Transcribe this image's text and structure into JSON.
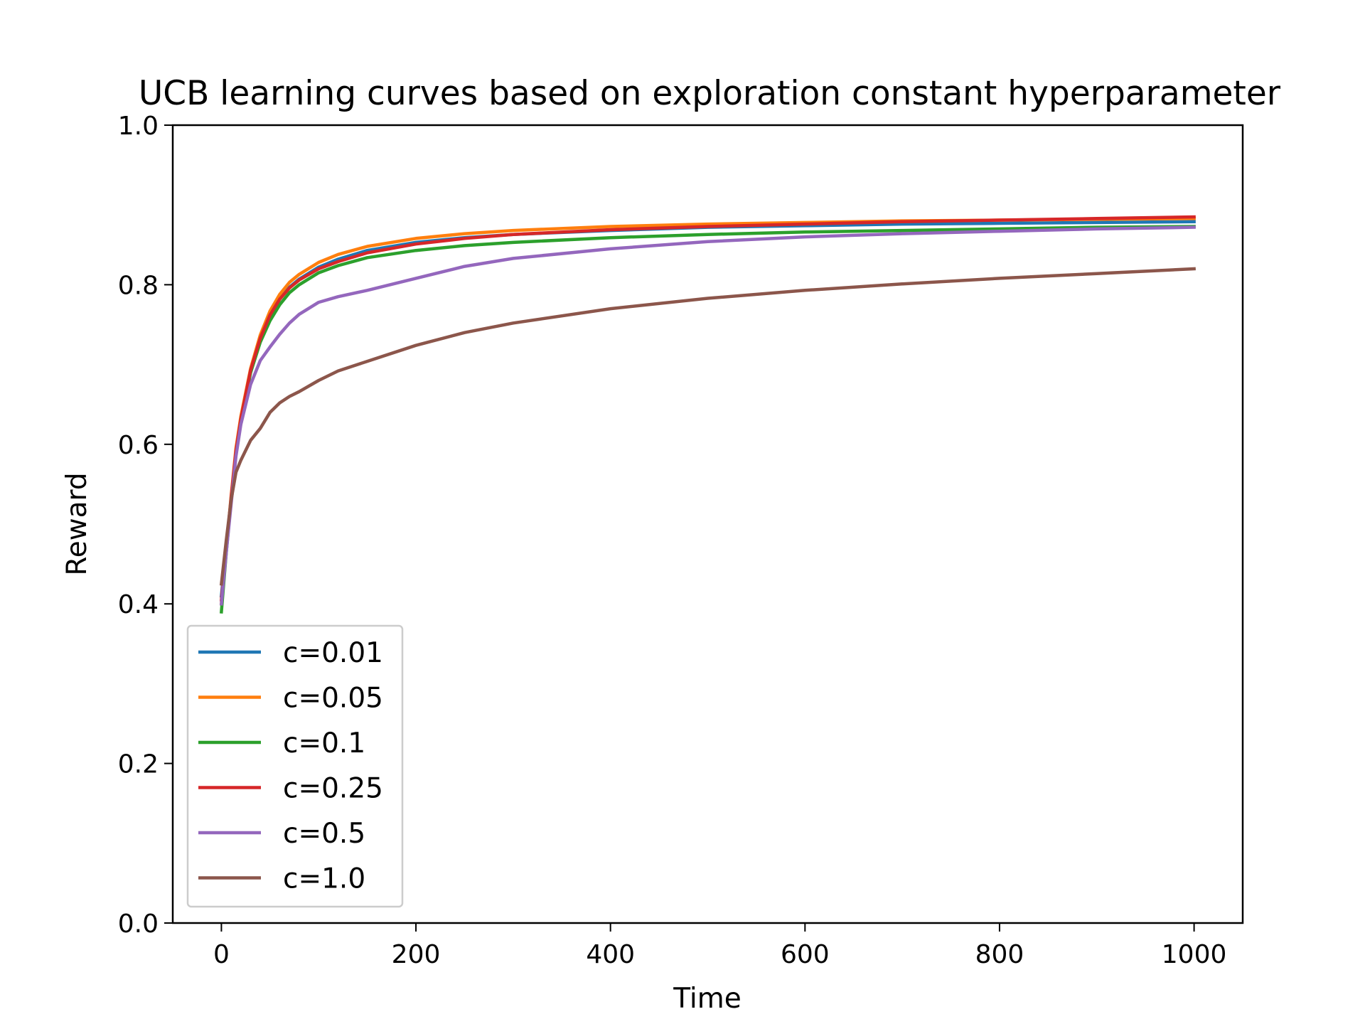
{
  "chart_data": {
    "type": "line",
    "title": "UCB learning curves based on exploration constant hyperparameter",
    "xlabel": "Time",
    "ylabel": "Reward",
    "xlim": [
      -50,
      1050
    ],
    "ylim": [
      0.0,
      1.0
    ],
    "xticks": [
      "0",
      "200",
      "400",
      "600",
      "800",
      "1000"
    ],
    "yticks": [
      "0.0",
      "0.2",
      "0.4",
      "0.6",
      "0.8",
      "1.0"
    ],
    "grid": false,
    "legend_position": "lower-left",
    "x": [
      0,
      5,
      10,
      15,
      20,
      30,
      40,
      50,
      60,
      70,
      80,
      100,
      120,
      150,
      200,
      250,
      300,
      400,
      500,
      600,
      700,
      800,
      900,
      1000
    ],
    "series": [
      {
        "name": "c=0.01",
        "color": "#1f77b4",
        "values": [
          0.41,
          0.47,
          0.53,
          0.59,
          0.63,
          0.69,
          0.73,
          0.76,
          0.782,
          0.797,
          0.807,
          0.822,
          0.832,
          0.843,
          0.853,
          0.859,
          0.863,
          0.868,
          0.872,
          0.874,
          0.876,
          0.877,
          0.878,
          0.879
        ]
      },
      {
        "name": "c=0.05",
        "color": "#ff7f0e",
        "values": [
          0.4,
          0.47,
          0.535,
          0.595,
          0.635,
          0.695,
          0.737,
          0.767,
          0.788,
          0.803,
          0.813,
          0.828,
          0.838,
          0.848,
          0.858,
          0.864,
          0.868,
          0.873,
          0.876,
          0.878,
          0.88,
          0.881,
          0.882,
          0.883
        ]
      },
      {
        "name": "c=0.1",
        "color": "#2ca02c",
        "values": [
          0.39,
          0.465,
          0.53,
          0.59,
          0.63,
          0.69,
          0.728,
          0.755,
          0.775,
          0.79,
          0.8,
          0.815,
          0.824,
          0.834,
          0.843,
          0.849,
          0.853,
          0.859,
          0.863,
          0.866,
          0.868,
          0.87,
          0.872,
          0.873
        ]
      },
      {
        "name": "c=0.25",
        "color": "#d62728",
        "values": [
          0.405,
          0.47,
          0.533,
          0.592,
          0.632,
          0.693,
          0.733,
          0.762,
          0.782,
          0.796,
          0.806,
          0.82,
          0.829,
          0.84,
          0.851,
          0.858,
          0.863,
          0.869,
          0.873,
          0.876,
          0.879,
          0.881,
          0.883,
          0.885
        ]
      },
      {
        "name": "c=0.5",
        "color": "#9467bd",
        "values": [
          0.4,
          0.465,
          0.525,
          0.585,
          0.625,
          0.675,
          0.705,
          0.722,
          0.738,
          0.752,
          0.763,
          0.778,
          0.785,
          0.793,
          0.808,
          0.823,
          0.833,
          0.845,
          0.854,
          0.86,
          0.864,
          0.867,
          0.87,
          0.872
        ]
      },
      {
        "name": "c=1.0",
        "color": "#8c564b",
        "values": [
          0.425,
          0.48,
          0.53,
          0.565,
          0.58,
          0.605,
          0.62,
          0.64,
          0.652,
          0.66,
          0.666,
          0.68,
          0.692,
          0.704,
          0.724,
          0.74,
          0.752,
          0.77,
          0.783,
          0.793,
          0.801,
          0.808,
          0.814,
          0.82
        ]
      }
    ]
  }
}
